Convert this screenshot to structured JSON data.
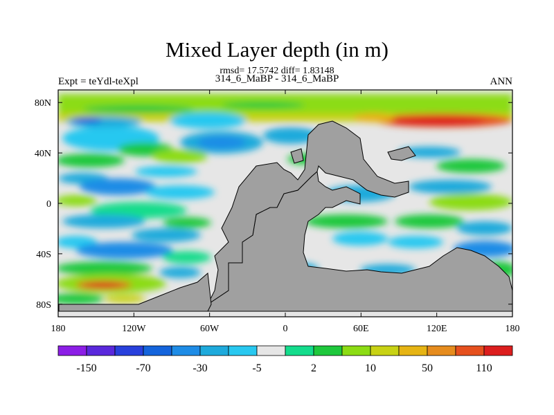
{
  "chart_data": {
    "type": "heatmap",
    "title": "Mixed Layer depth (in m)",
    "stats_text": "rmsd= 17.5742 diff= 1.83148",
    "subtitle": "314_6_MaBP - 314_6_MaBP",
    "left_label": "Expt = teYdl-teXpl",
    "right_label": "ANN",
    "x_ticks": [
      "180",
      "120W",
      "60W",
      "0",
      "60E",
      "120E",
      "180"
    ],
    "y_ticks": [
      "80N",
      "40N",
      "0",
      "40S",
      "80S"
    ],
    "xlim": [
      -180,
      180
    ],
    "ylim": [
      -90,
      90
    ],
    "colorbar_labels": [
      "-150",
      "-70",
      "-30",
      "-5",
      "2",
      "10",
      "50",
      "110"
    ],
    "colorbar_colors": [
      "#8c1ee6",
      "#5a28dc",
      "#2840dc",
      "#1464dc",
      "#1e8ce6",
      "#1eaadc",
      "#28c8f0",
      "#e6e6e6",
      "#14dc8c",
      "#1ec83c",
      "#8cdc14",
      "#c8d214",
      "#e6b414",
      "#e68c1e",
      "#e6501e",
      "#dc1e1e"
    ],
    "land_color": "#a0a0a0"
  }
}
